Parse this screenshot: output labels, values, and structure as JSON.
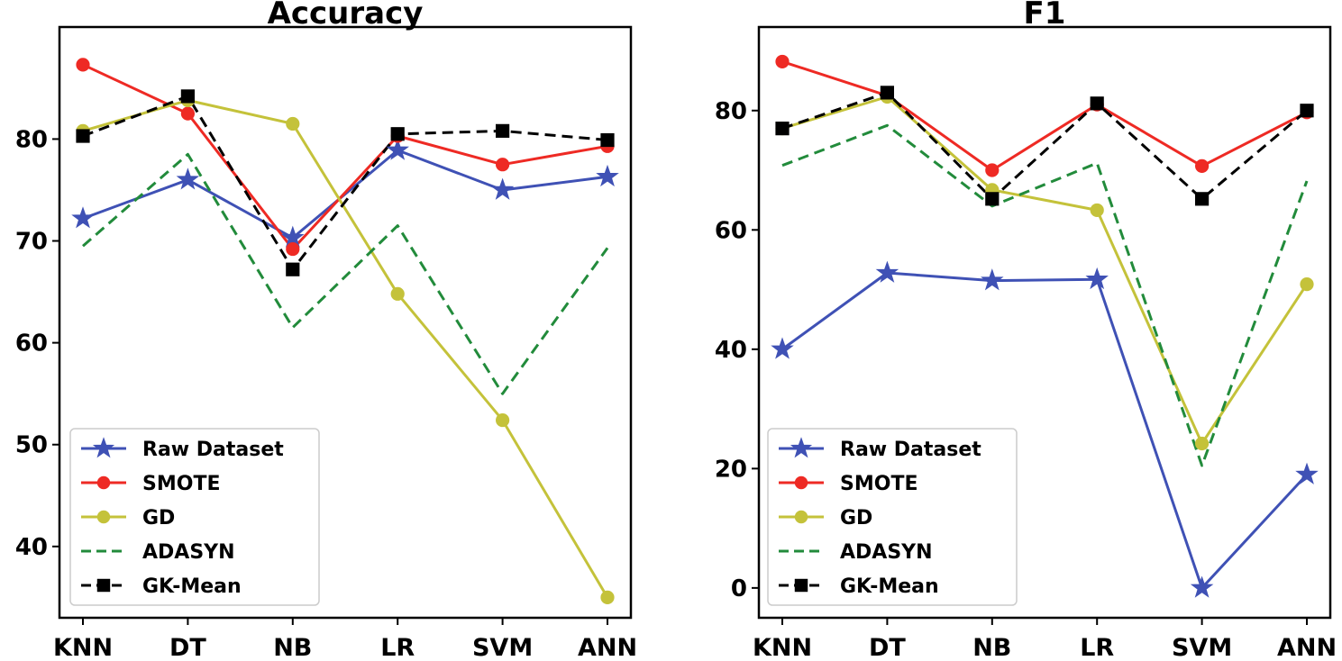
{
  "chart_data": [
    {
      "type": "line",
      "title": "Accuracy",
      "categories": [
        "KNN",
        "DT",
        "NB",
        "LR",
        "SVM",
        "ANN"
      ],
      "ylim": [
        33,
        91
      ],
      "yticks": [
        40,
        50,
        60,
        70,
        80
      ],
      "series": [
        {
          "name": "Raw Dataset",
          "values": [
            72.2,
            76.0,
            70.3,
            78.9,
            75.0,
            76.3
          ],
          "color": "#3f51b5",
          "marker": "star",
          "dash": false
        },
        {
          "name": "SMOTE",
          "values": [
            87.3,
            82.5,
            69.2,
            80.3,
            77.5,
            79.3
          ],
          "color": "#ee2a24",
          "marker": "circle",
          "dash": false
        },
        {
          "name": "GD",
          "values": [
            80.8,
            83.8,
            81.5,
            64.8,
            52.4,
            35.0
          ],
          "color": "#c4c23a",
          "marker": "circle",
          "dash": false
        },
        {
          "name": "ADASYN",
          "values": [
            69.5,
            78.5,
            61.5,
            71.5,
            55.0,
            69.3
          ],
          "color": "#228b3b",
          "marker": "none",
          "dash": true
        },
        {
          "name": "GK-Mean",
          "values": [
            80.3,
            84.2,
            67.2,
            80.5,
            80.8,
            79.9
          ],
          "color": "#000000",
          "marker": "square",
          "dash": true
        }
      ]
    },
    {
      "type": "line",
      "title": "F1",
      "categories": [
        "KNN",
        "DT",
        "NB",
        "LR",
        "SVM",
        "ANN"
      ],
      "ylim": [
        -5,
        94
      ],
      "yticks": [
        0,
        20,
        40,
        60,
        80
      ],
      "series": [
        {
          "name": "Raw Dataset",
          "values": [
            40.0,
            52.8,
            51.5,
            51.7,
            0.0,
            19.0
          ],
          "color": "#3f51b5",
          "marker": "star",
          "dash": false
        },
        {
          "name": "SMOTE",
          "values": [
            88.2,
            82.5,
            70.0,
            81.0,
            70.7,
            79.7
          ],
          "color": "#ee2a24",
          "marker": "circle",
          "dash": false
        },
        {
          "name": "GD",
          "values": [
            77.0,
            82.3,
            66.7,
            63.3,
            24.2,
            50.9
          ],
          "color": "#c4c23a",
          "marker": "circle",
          "dash": false
        },
        {
          "name": "ADASYN",
          "values": [
            70.8,
            77.5,
            64.0,
            71.2,
            20.5,
            68.2
          ],
          "color": "#228b3b",
          "marker": "none",
          "dash": true
        },
        {
          "name": "GK-Mean",
          "values": [
            77.0,
            83.0,
            65.2,
            81.2,
            65.2,
            80.0
          ],
          "color": "#000000",
          "marker": "square",
          "dash": true
        }
      ]
    }
  ]
}
